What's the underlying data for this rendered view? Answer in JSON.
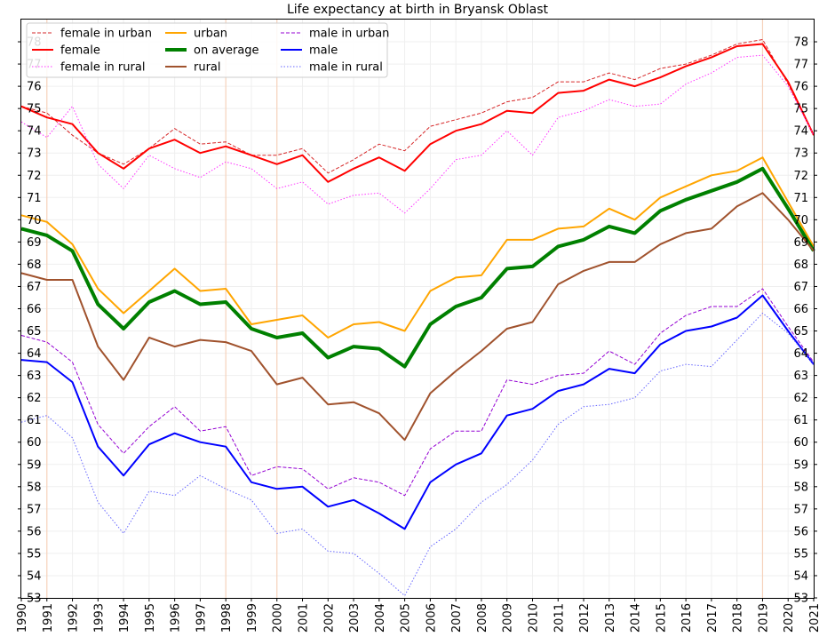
{
  "chart_data": {
    "type": "line",
    "title": "Life expectancy at birth in Bryansk Oblast",
    "xlabel": "",
    "ylabel": "",
    "x": [
      1990,
      1991,
      1992,
      1993,
      1994,
      1995,
      1996,
      1997,
      1998,
      1999,
      2000,
      2001,
      2002,
      2003,
      2004,
      2005,
      2006,
      2007,
      2008,
      2009,
      2010,
      2011,
      2012,
      2013,
      2014,
      2015,
      2016,
      2017,
      2018,
      2019,
      2020,
      2021
    ],
    "xlim": [
      1990,
      2021
    ],
    "ylim": [
      53,
      79
    ],
    "yticks": [
      53,
      54,
      55,
      56,
      57,
      58,
      59,
      60,
      61,
      62,
      63,
      64,
      65,
      66,
      67,
      68,
      69,
      70,
      71,
      72,
      73,
      74,
      75,
      76,
      77,
      78
    ],
    "highlight_years": [
      1991,
      1998,
      2000,
      2019
    ],
    "legend_position": "top-left",
    "series": [
      {
        "name": "female in urban",
        "color": "#d62728",
        "width": 1,
        "dash": "4,2",
        "values": [
          75.1,
          74.8,
          73.8,
          73.0,
          72.5,
          73.2,
          74.1,
          73.4,
          73.5,
          72.9,
          72.9,
          73.2,
          72.1,
          72.7,
          73.4,
          73.1,
          74.2,
          74.5,
          74.8,
          75.3,
          75.5,
          76.2,
          76.2,
          76.6,
          76.3,
          76.8,
          77.0,
          77.4,
          77.9,
          78.1,
          76.1,
          73.8
        ]
      },
      {
        "name": "female",
        "color": "#ff0000",
        "width": 2,
        "dash": "",
        "values": [
          75.1,
          74.6,
          74.3,
          73.0,
          72.3,
          73.2,
          73.6,
          73.0,
          73.3,
          72.9,
          72.5,
          72.9,
          71.7,
          72.3,
          72.8,
          72.2,
          73.4,
          74.0,
          74.3,
          74.9,
          74.8,
          75.7,
          75.8,
          76.3,
          76.0,
          76.4,
          76.9,
          77.3,
          77.8,
          77.9,
          76.2,
          73.8
        ]
      },
      {
        "name": "female in rural",
        "color": "#ff33ff",
        "width": 1,
        "dash": "1.5,2",
        "values": [
          74.4,
          73.7,
          75.1,
          72.5,
          71.4,
          72.9,
          72.3,
          71.9,
          72.6,
          72.3,
          71.4,
          71.7,
          70.7,
          71.1,
          71.2,
          70.3,
          71.4,
          72.7,
          72.9,
          74.0,
          72.9,
          74.6,
          74.9,
          75.4,
          75.1,
          75.2,
          76.1,
          76.6,
          77.3,
          77.4,
          76.0,
          73.8
        ]
      },
      {
        "name": "urban",
        "color": "#ffa500",
        "width": 2,
        "dash": "",
        "values": [
          70.2,
          69.9,
          68.9,
          66.9,
          65.8,
          66.8,
          67.8,
          66.8,
          66.9,
          65.3,
          65.5,
          65.7,
          64.7,
          65.3,
          65.4,
          65.0,
          66.8,
          67.4,
          67.5,
          69.1,
          69.1,
          69.6,
          69.7,
          70.5,
          70.0,
          71.0,
          71.5,
          72.0,
          72.2,
          72.8,
          70.8,
          68.8
        ]
      },
      {
        "name": "on average",
        "color": "#008000",
        "width": 4,
        "dash": "",
        "values": [
          69.6,
          69.3,
          68.6,
          66.2,
          65.1,
          66.3,
          66.8,
          66.2,
          66.3,
          65.1,
          64.7,
          64.9,
          63.8,
          64.3,
          64.2,
          63.4,
          65.3,
          66.1,
          66.5,
          67.8,
          67.9,
          68.8,
          69.1,
          69.7,
          69.4,
          70.4,
          70.9,
          71.3,
          71.7,
          72.3,
          70.5,
          68.6
        ]
      },
      {
        "name": "rural",
        "color": "#a0522d",
        "width": 2,
        "dash": "",
        "values": [
          67.6,
          67.3,
          67.3,
          64.3,
          62.8,
          64.7,
          64.3,
          64.6,
          64.5,
          64.1,
          62.6,
          62.9,
          61.7,
          61.8,
          61.3,
          60.1,
          62.2,
          63.2,
          64.1,
          65.1,
          65.4,
          67.1,
          67.7,
          68.1,
          68.1,
          68.9,
          69.4,
          69.6,
          70.6,
          71.2,
          70.0,
          68.6
        ]
      },
      {
        "name": "male in urban",
        "color": "#9400d3",
        "width": 1,
        "dash": "4,2",
        "values": [
          64.8,
          64.5,
          63.6,
          60.8,
          59.5,
          60.7,
          61.6,
          60.5,
          60.7,
          58.5,
          58.9,
          58.8,
          57.9,
          58.4,
          58.2,
          57.6,
          59.7,
          60.5,
          60.5,
          62.8,
          62.6,
          63.0,
          63.1,
          64.1,
          63.5,
          64.9,
          65.7,
          66.1,
          66.1,
          66.9,
          65.2,
          63.6
        ]
      },
      {
        "name": "male",
        "color": "#0000ff",
        "width": 2,
        "dash": "",
        "values": [
          63.7,
          63.6,
          62.7,
          59.8,
          58.5,
          59.9,
          60.4,
          60.0,
          59.8,
          58.2,
          57.9,
          58.0,
          57.1,
          57.4,
          56.8,
          56.1,
          58.2,
          59.0,
          59.5,
          61.2,
          61.5,
          62.3,
          62.6,
          63.3,
          63.1,
          64.4,
          65.0,
          65.2,
          65.6,
          66.6,
          65.0,
          63.5
        ]
      },
      {
        "name": "male in rural",
        "color": "#6666ff",
        "width": 1,
        "dash": "1.5,2",
        "values": [
          60.9,
          61.2,
          60.2,
          57.3,
          55.9,
          57.8,
          57.6,
          58.5,
          57.9,
          57.4,
          55.9,
          56.1,
          55.1,
          55.0,
          54.1,
          53.1,
          55.3,
          56.1,
          57.3,
          58.1,
          59.2,
          60.8,
          61.6,
          61.7,
          62.0,
          63.2,
          63.5,
          63.4,
          64.6,
          65.8,
          64.9,
          63.5
        ]
      }
    ],
    "legend_columns": [
      [
        "female in urban",
        "female",
        "female in rural"
      ],
      [
        "urban",
        "on average",
        "rural"
      ],
      [
        "male in urban",
        "male",
        "male in rural"
      ]
    ]
  }
}
